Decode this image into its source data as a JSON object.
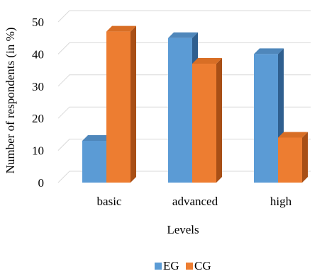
{
  "chart_data": {
    "type": "bar",
    "style": "3d-clustered-column",
    "categories": [
      "basic",
      "advanced",
      "high"
    ],
    "series": [
      {
        "name": "EG",
        "values": [
          13,
          45,
          40
        ],
        "color": "#5b9bd5",
        "top_color": "#4f87bb",
        "side_color": "#2f5f8f"
      },
      {
        "name": "CG",
        "values": [
          47,
          37,
          14
        ],
        "color": "#ed7d31",
        "top_color": "#d86e25",
        "side_color": "#a84f16"
      }
    ],
    "title": "",
    "xlabel": "Levels",
    "ylabel": "Number of respondents (in %)",
    "ylim": [
      0,
      50
    ],
    "yticks": [
      0,
      10,
      20,
      30,
      40,
      50
    ],
    "grid": true,
    "grid_color": "#d9d9d9",
    "legend": "bottom"
  }
}
